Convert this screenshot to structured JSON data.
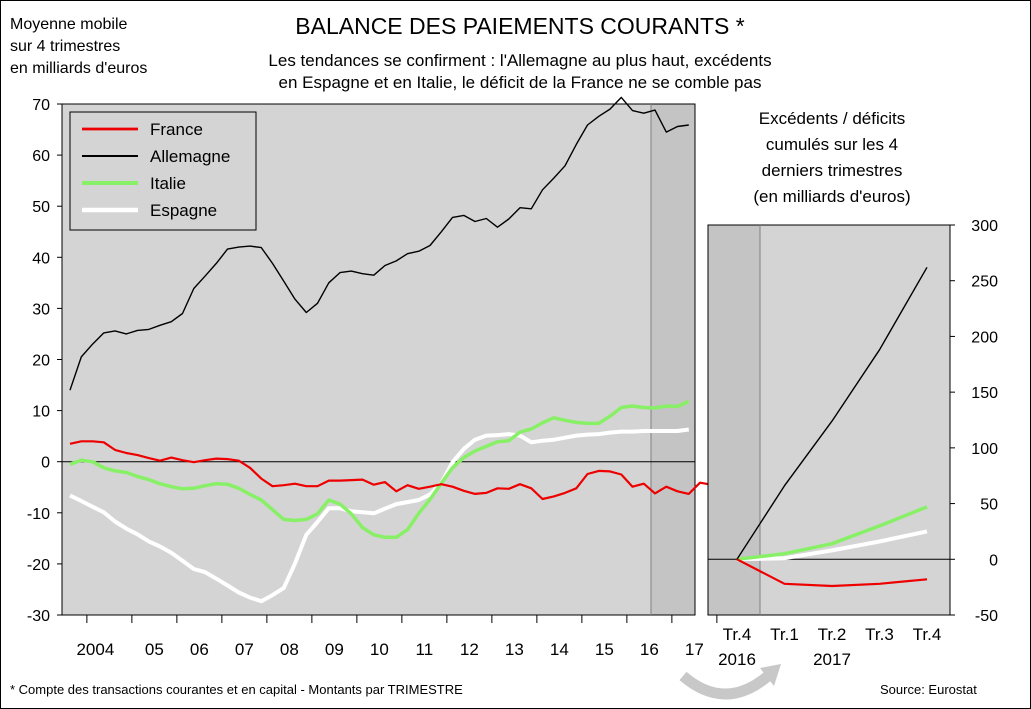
{
  "units_label": [
    "Moyenne mobile",
    "sur 4 trimestres",
    "en milliards d'euros"
  ],
  "title": "BALANCE DES PAIEMENTS COURANTS *",
  "subtitle": [
    "Les tendances se confirment : l'Allemagne au plus haut, excédents",
    "en Espagne et en Italie, le déficit de la France ne se comble pas"
  ],
  "right_title": [
    "Excédents / déficits",
    "cumulés sur les 4",
    "derniers trimestres",
    "(en milliards d'euros)"
  ],
  "footnote": "* Compte des transactions courantes et en capital - Montants par TRIMESTRE",
  "source": "Source: Eurostat",
  "colors": {
    "France": "#ee0000",
    "Allemagne": "#000000",
    "Italie": "#88f066",
    "Espagne": "#ffffff",
    "plot_bg": "#d4d4d4",
    "shade": "#c4c4c4"
  },
  "chart_data": [
    {
      "type": "line",
      "ylim": [
        -30,
        70
      ],
      "yticks": [
        "70",
        "60",
        "50",
        "40",
        "30",
        "20",
        "10",
        "0",
        "-10",
        "-20",
        "-30"
      ],
      "xticks": [
        "2004",
        "05",
        "06",
        "07",
        "08",
        "09",
        "10",
        "11",
        "12",
        "13",
        "14",
        "15",
        "16",
        "17"
      ],
      "x_start": "2003-Q3",
      "legend_position": "top-left",
      "grid": false,
      "series": [
        {
          "name": "France",
          "values": [
            3.5,
            4,
            4,
            3.8,
            2.3,
            1.7,
            1.3,
            0.7,
            0.2,
            0.8,
            0.3,
            -0.1,
            0.3,
            0.6,
            0.5,
            0.2,
            -1.2,
            -3.3,
            -4.8,
            -4.6,
            -4.3,
            -4.8,
            -4.8,
            -3.7,
            -3.7,
            -3.6,
            -3.5,
            -4.5,
            -4,
            -5.8,
            -4.6,
            -5.3,
            -4.9,
            -4.4,
            -4.9,
            -5.7,
            -6.3,
            -6.1,
            -5.2,
            -5.3,
            -4.4,
            -5.2,
            -7.3,
            -6.8,
            -6.1,
            -5.2,
            -2.4,
            -1.8,
            -1.9,
            -2.5,
            -4.9,
            -4.3,
            -6.2,
            -4.9,
            -5.8,
            -6.3,
            -4.1,
            -4.5
          ]
        },
        {
          "name": "Allemagne",
          "values": [
            14,
            20.5,
            23,
            25.2,
            25.6,
            25,
            25.7,
            25.9,
            26.7,
            27.4,
            29,
            33.9,
            36.3,
            38.8,
            41.6,
            42,
            42.2,
            41.9,
            38.8,
            35.3,
            31.8,
            29.2,
            31,
            35,
            37,
            37.3,
            36.8,
            36.5,
            38.4,
            39.3,
            40.7,
            41.2,
            42.3,
            45,
            47.8,
            48.2,
            47,
            47.6,
            45.9,
            47.5,
            49.7,
            49.5,
            53.2,
            55.5,
            57.9,
            62.1,
            65.9,
            67.6,
            69,
            71.3,
            68.7,
            68.2,
            68.8,
            64.5,
            65.6,
            65.9
          ]
        },
        {
          "name": "Italie",
          "values": [
            -0.5,
            0.3,
            0,
            -1.2,
            -1.8,
            -2.1,
            -2.9,
            -3.5,
            -4.3,
            -4.9,
            -5.3,
            -5.2,
            -4.7,
            -4.3,
            -4.4,
            -5.2,
            -6.4,
            -7.5,
            -9.4,
            -11.3,
            -11.5,
            -11.3,
            -10.2,
            -7.5,
            -8.3,
            -10.2,
            -12.9,
            -14.3,
            -14.8,
            -14.8,
            -13.3,
            -10.1,
            -7.4,
            -4.2,
            -1.2,
            0.8,
            2.1,
            3,
            3.9,
            4.1,
            5.8,
            6.4,
            7.6,
            8.6,
            8.1,
            7.7,
            7.5,
            7.5,
            8.9,
            10.6,
            10.9,
            10.6,
            10.5,
            10.9,
            10.8,
            11.8
          ]
        },
        {
          "name": "Espagne",
          "values": [
            -6.6,
            -7.7,
            -8.8,
            -9.9,
            -11.7,
            -13.1,
            -14.2,
            -15.6,
            -16.6,
            -17.8,
            -19.4,
            -21,
            -21.6,
            -22.9,
            -24.2,
            -25.6,
            -26.6,
            -27.3,
            -26.1,
            -24.7,
            -19.9,
            -14.3,
            -11.8,
            -9.1,
            -9.1,
            -9.7,
            -9.9,
            -10.1,
            -9.2,
            -8.3,
            -7.9,
            -7.5,
            -6.4,
            -4.2,
            -0.1,
            2.5,
            4.3,
            5.1,
            5.2,
            5.4,
            5.1,
            3.8,
            4.1,
            4.3,
            4.7,
            5.1,
            5.3,
            5.4,
            5.7,
            5.9,
            5.9,
            6,
            6,
            6,
            6,
            6.3
          ]
        }
      ]
    },
    {
      "type": "line",
      "ylim": [
        -50,
        300
      ],
      "yticks": [
        "300",
        "250",
        "200",
        "150",
        "100",
        "50",
        "0",
        "-50"
      ],
      "categories": [
        "Tr.4",
        "Tr.1",
        "Tr.2",
        "Tr.3",
        "Tr.4"
      ],
      "category_years": [
        "2016",
        "2017"
      ],
      "series": [
        {
          "name": "Allemagne",
          "values": [
            0,
            66,
            124,
            188,
            262
          ]
        },
        {
          "name": "Italie",
          "values": [
            0,
            5,
            14,
            30,
            47
          ]
        },
        {
          "name": "Espagne",
          "values": [
            0,
            1,
            8,
            16,
            25
          ]
        },
        {
          "name": "France",
          "values": [
            0,
            -22,
            -24,
            -22,
            -18
          ]
        }
      ]
    }
  ]
}
